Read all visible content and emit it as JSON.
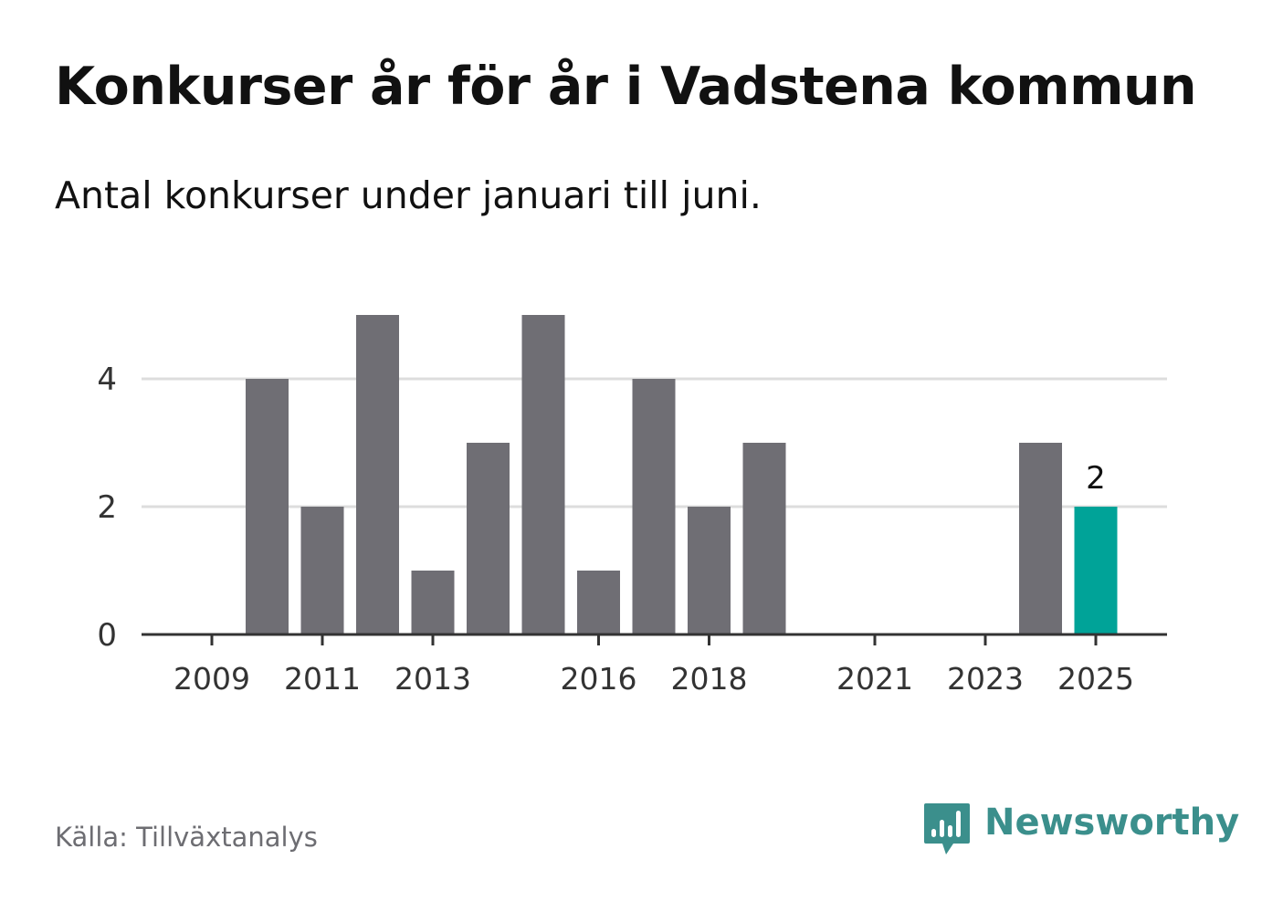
{
  "title": "Konkurser år för år i Vadstena kommun",
  "subtitle": "Antal konkurser under januari till juni.",
  "source": "Källa: Tillväxtanalys",
  "brand": {
    "name": "Newsworthy",
    "icon": "newsworthy-bar-chart-speech-bubble-icon",
    "color": "#3b8f8c"
  },
  "colors": {
    "bar": "#6f6e74",
    "highlight": "#00a398",
    "grid": "#dddddd",
    "axis": "#333333",
    "text": "#333333"
  },
  "chart_data": {
    "type": "bar",
    "categories": [
      "2009",
      "2010",
      "2011",
      "2012",
      "2013",
      "2014",
      "2015",
      "2016",
      "2017",
      "2018",
      "2019",
      "2020",
      "2021",
      "2022",
      "2023",
      "2024",
      "2025"
    ],
    "values": [
      0,
      4,
      2,
      5,
      1,
      3,
      5,
      1,
      4,
      2,
      3,
      0,
      0,
      0,
      0,
      3,
      2
    ],
    "x_tick_labels": [
      "2009",
      "2011",
      "2013",
      "2016",
      "2018",
      "2021",
      "2023",
      "2025"
    ],
    "y_ticks": [
      0,
      2,
      4
    ],
    "ylim": [
      0,
      5
    ],
    "highlight_category": "2025",
    "data_labels": [
      {
        "category": "2025",
        "text": "2"
      }
    ],
    "grid": true,
    "xlabel": "",
    "ylabel": ""
  }
}
